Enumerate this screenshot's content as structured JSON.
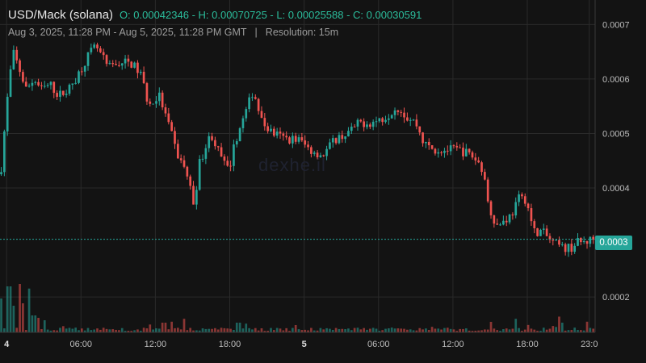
{
  "header": {
    "title": "USD/Mack (solana)",
    "ohlc": "O: 0.00042346 - H: 0.00070725 - L: 0.00025588 - C: 0.00030591",
    "range": "Aug 3, 2025, 11:28 PM - Aug 5, 2025, 11:28 PM GMT",
    "separator": "|",
    "resolution": "Resolution: 15m"
  },
  "watermark": "dexhe.il",
  "last_price_label": "0.0003",
  "colors": {
    "up": "#26a69a",
    "down": "#ef5350",
    "grid": "#2a2a2a",
    "background": "#131313"
  },
  "chart_data": {
    "type": "candlestick",
    "title": "USD/Mack (solana)",
    "open": 0.00042346,
    "high": 0.00070725,
    "low": 0.00025588,
    "close": 0.00030591,
    "ylim": [
      0.000135,
      0.000745
    ],
    "y_ticks": [
      {
        "value": 0.0007,
        "label": "0.0007"
      },
      {
        "value": 0.0006,
        "label": "0.0006"
      },
      {
        "value": 0.0005,
        "label": "0.0005"
      },
      {
        "value": 0.0004,
        "label": "0.0004"
      },
      {
        "value": 0.0002,
        "label": "0.0002"
      }
    ],
    "x_ticks": [
      {
        "hour": 0,
        "label": "4",
        "bold": true
      },
      {
        "hour": 6,
        "label": "06:00",
        "bold": false
      },
      {
        "hour": 12,
        "label": "12:00",
        "bold": false
      },
      {
        "hour": 18,
        "label": "18:00",
        "bold": false
      },
      {
        "hour": 24,
        "label": "5",
        "bold": true
      },
      {
        "hour": 30,
        "label": "06:00",
        "bold": false
      },
      {
        "hour": 36,
        "label": "12:00",
        "bold": false
      },
      {
        "hour": 42,
        "label": "18:00",
        "bold": false
      },
      {
        "hour": 47,
        "label": "23:0",
        "bold": false
      }
    ],
    "x_range_hours": [
      -0.53,
      47.47
    ],
    "last_price": 0.00030591,
    "series_close_path": [
      [
        -0.5,
        0.00042
      ],
      [
        0.0,
        0.00055
      ],
      [
        0.5,
        0.00065
      ],
      [
        1.0,
        0.00062
      ],
      [
        1.6,
        0.00058
      ],
      [
        2.2,
        0.0006
      ],
      [
        2.8,
        0.00058
      ],
      [
        3.5,
        0.00059
      ],
      [
        4.2,
        0.00057
      ],
      [
        5.0,
        0.00058
      ],
      [
        5.8,
        0.00061
      ],
      [
        6.5,
        0.00064
      ],
      [
        7.2,
        0.00066
      ],
      [
        8.2,
        0.00062
      ],
      [
        9.0,
        0.00063
      ],
      [
        10.0,
        0.00063
      ],
      [
        10.8,
        0.00061
      ],
      [
        11.5,
        0.00055
      ],
      [
        12.3,
        0.00057
      ],
      [
        13.0,
        0.00052
      ],
      [
        13.8,
        0.00046
      ],
      [
        14.5,
        0.00043
      ],
      [
        15.1,
        0.00037
      ],
      [
        15.6,
        0.00045
      ],
      [
        16.5,
        0.0005
      ],
      [
        17.2,
        0.00046
      ],
      [
        17.9,
        0.00043
      ],
      [
        18.5,
        0.00049
      ],
      [
        19.3,
        0.00054
      ],
      [
        19.9,
        0.00058
      ],
      [
        20.6,
        0.00052
      ],
      [
        21.5,
        0.0005
      ],
      [
        22.5,
        0.00049
      ],
      [
        23.5,
        0.00049
      ],
      [
        24.5,
        0.00047
      ],
      [
        25.5,
        0.00046
      ],
      [
        26.5,
        0.00049
      ],
      [
        27.5,
        0.0005
      ],
      [
        28.5,
        0.00052
      ],
      [
        29.5,
        0.00052
      ],
      [
        30.5,
        0.00053
      ],
      [
        31.5,
        0.00055
      ],
      [
        32.3,
        0.00053
      ],
      [
        33.0,
        0.00052
      ],
      [
        33.7,
        0.00048
      ],
      [
        34.5,
        0.00047
      ],
      [
        35.5,
        0.00047
      ],
      [
        36.5,
        0.00047
      ],
      [
        37.5,
        0.00046
      ],
      [
        38.3,
        0.00044
      ],
      [
        38.9,
        0.00037
      ],
      [
        39.5,
        0.00033
      ],
      [
        40.1,
        0.00034
      ],
      [
        40.7,
        0.00035
      ],
      [
        41.3,
        0.00038
      ],
      [
        41.9,
        0.00038
      ],
      [
        42.5,
        0.00032
      ],
      [
        43.2,
        0.00032
      ],
      [
        44.0,
        0.0003
      ],
      [
        44.8,
        0.00029
      ],
      [
        45.5,
        0.00029
      ],
      [
        46.0,
        0.0003
      ],
      [
        46.5,
        0.0003
      ],
      [
        47.3,
        0.000306
      ]
    ],
    "volume_relative_peaks": [
      [
        -0.4,
        0.7
      ],
      [
        0.2,
        0.95
      ],
      [
        0.6,
        0.55
      ],
      [
        1.0,
        1.0
      ],
      [
        1.4,
        0.6
      ],
      [
        1.8,
        0.85
      ],
      [
        2.2,
        0.35
      ],
      [
        2.6,
        0.3
      ],
      [
        3.0,
        0.25
      ],
      [
        12.7,
        0.2
      ],
      [
        13.3,
        0.22
      ],
      [
        14.4,
        0.28
      ],
      [
        18.7,
        0.2
      ],
      [
        19.3,
        0.18
      ],
      [
        23.4,
        0.15
      ],
      [
        41.0,
        0.28
      ],
      [
        44.7,
        0.2
      ],
      [
        46.8,
        0.22
      ]
    ]
  }
}
